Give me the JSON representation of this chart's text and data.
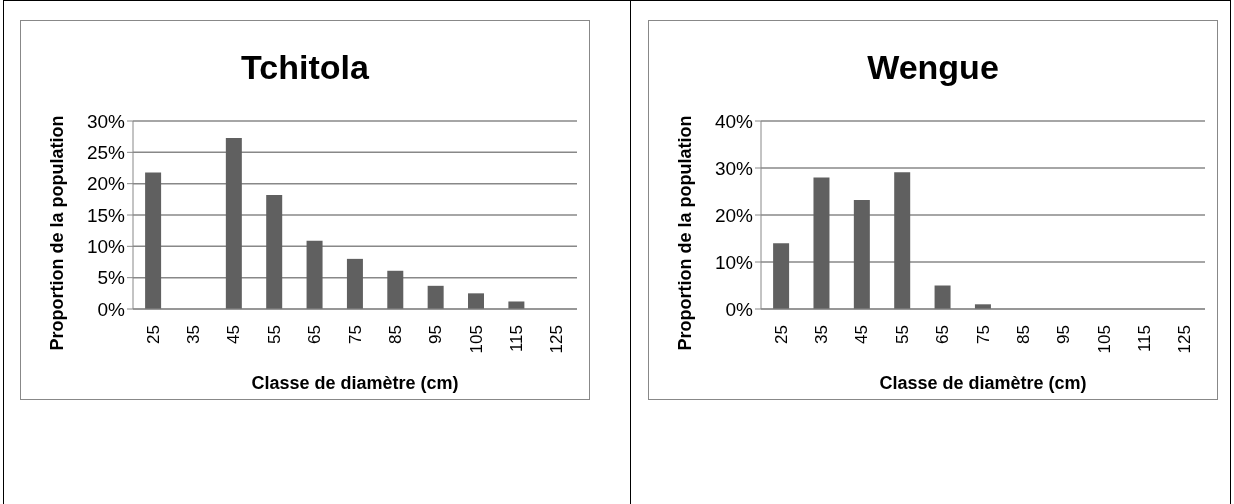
{
  "chart_data": [
    {
      "type": "bar",
      "title": "Tchitola",
      "xlabel": "Classe de diamètre (cm)",
      "ylabel": "Proportion de la population",
      "categories": [
        "25",
        "35",
        "45",
        "55",
        "65",
        "75",
        "85",
        "95",
        "105",
        "115",
        "125"
      ],
      "values": [
        21.8,
        0,
        27.3,
        18.2,
        10.9,
        8.0,
        6.1,
        3.7,
        2.5,
        1.2,
        0
      ],
      "color": "#606060",
      "ylim": [
        0,
        30
      ],
      "yticks": [
        {
          "value": 0,
          "label": "0%"
        },
        {
          "value": 5,
          "label": "5%"
        },
        {
          "value": 10,
          "label": "10%"
        },
        {
          "value": 15,
          "label": "15%"
        },
        {
          "value": 20,
          "label": "20%"
        },
        {
          "value": 25,
          "label": "25%"
        },
        {
          "value": 30,
          "label": "30%"
        }
      ],
      "grid": "y",
      "legend": false
    },
    {
      "type": "bar",
      "title": "Wengue",
      "xlabel": "Classe de diamètre (cm)",
      "ylabel": "Proportion de la population",
      "categories": [
        "25",
        "35",
        "45",
        "55",
        "65",
        "75",
        "85",
        "95",
        "105",
        "115",
        "125"
      ],
      "values": [
        14,
        28,
        23.2,
        29.1,
        5,
        1,
        0,
        0,
        0,
        0,
        0
      ],
      "color": "#606060",
      "ylim": [
        0,
        40
      ],
      "yticks": [
        {
          "value": 0,
          "label": "0%"
        },
        {
          "value": 10,
          "label": "10%"
        },
        {
          "value": 20,
          "label": "20%"
        },
        {
          "value": 30,
          "label": "30%"
        },
        {
          "value": 40,
          "label": "40%"
        }
      ],
      "grid": "y",
      "legend": false
    }
  ]
}
